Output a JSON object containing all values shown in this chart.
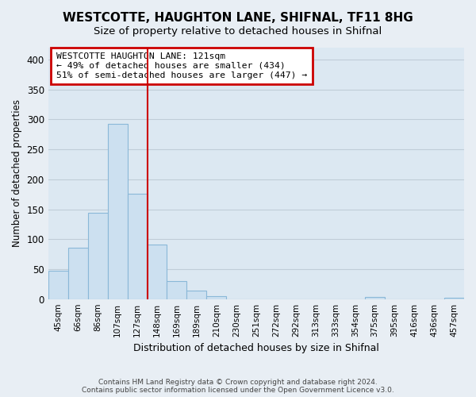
{
  "title": "WESTCOTTE, HAUGHTON LANE, SHIFNAL, TF11 8HG",
  "subtitle": "Size of property relative to detached houses in Shifnal",
  "xlabel": "Distribution of detached houses by size in Shifnal",
  "ylabel": "Number of detached properties",
  "bar_labels": [
    "45sqm",
    "66sqm",
    "86sqm",
    "107sqm",
    "127sqm",
    "148sqm",
    "169sqm",
    "189sqm",
    "210sqm",
    "230sqm",
    "251sqm",
    "272sqm",
    "292sqm",
    "313sqm",
    "333sqm",
    "354sqm",
    "375sqm",
    "395sqm",
    "416sqm",
    "436sqm",
    "457sqm"
  ],
  "bar_heights": [
    47,
    86,
    144,
    293,
    176,
    91,
    30,
    14,
    5,
    0,
    0,
    0,
    0,
    0,
    0,
    0,
    3,
    0,
    0,
    0,
    2
  ],
  "bar_color": "#cce0f0",
  "bar_edge_color": "#8ab8d8",
  "vline_x_index": 4,
  "vline_color": "#cc0000",
  "ylim": [
    0,
    420
  ],
  "yticks": [
    0,
    50,
    100,
    150,
    200,
    250,
    300,
    350,
    400
  ],
  "annotation_title": "WESTCOTTE HAUGHTON LANE: 121sqm",
  "annotation_line1": "← 49% of detached houses are smaller (434)",
  "annotation_line2": "51% of semi-detached houses are larger (447) →",
  "footer1": "Contains HM Land Registry data © Crown copyright and database right 2024.",
  "footer2": "Contains public sector information licensed under the Open Government Licence v3.0.",
  "bg_color": "#e8eef4",
  "plot_bg_color": "#dce8f2",
  "grid_color": "#c0cdd8",
  "title_fontsize": 11,
  "subtitle_fontsize": 9.5
}
